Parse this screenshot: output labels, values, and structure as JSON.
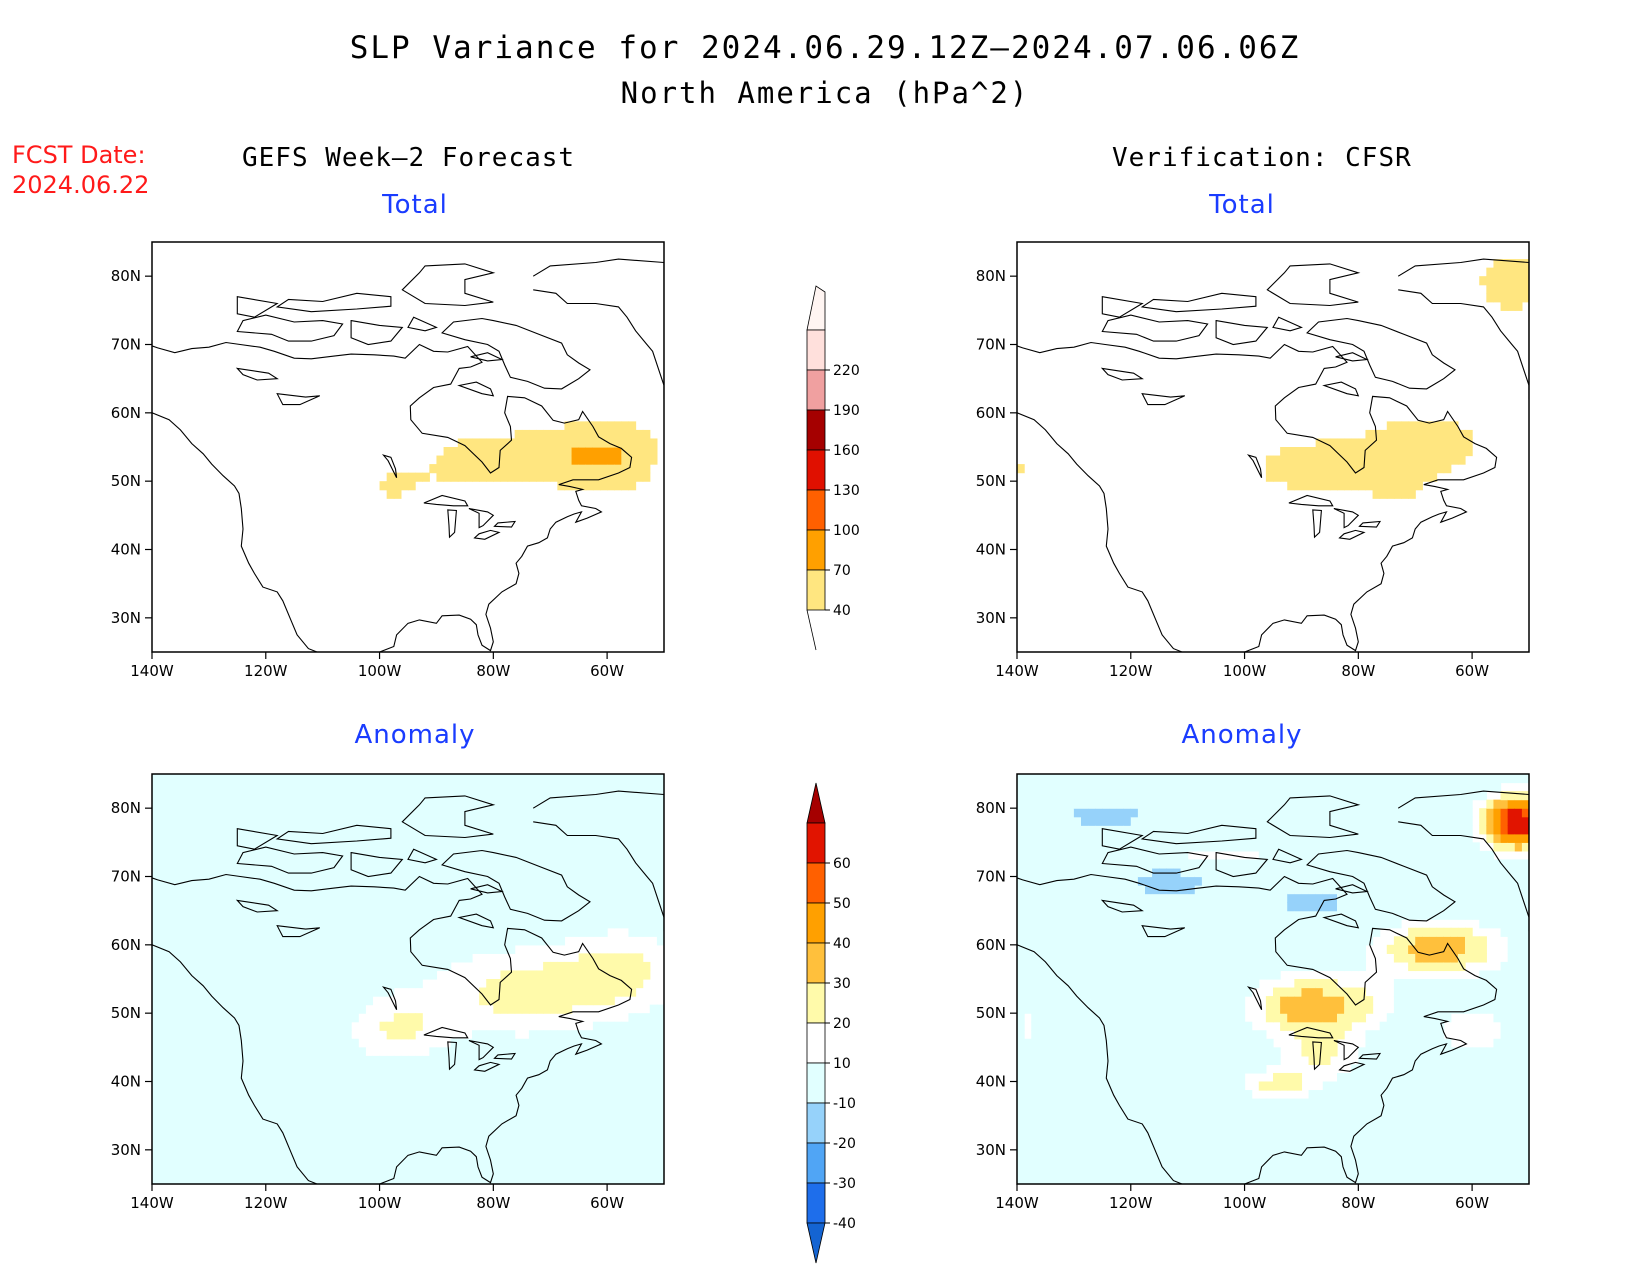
{
  "title": "SLP Variance for 2024.06.29.12Z–2024.07.06.06Z",
  "subtitle": "North America (hPa^2)",
  "fcst_date": {
    "label": "FCST Date:",
    "value": "2024.06.22"
  },
  "columns": {
    "left": "GEFS Week–2 Forecast",
    "right": "Verification: CFSR"
  },
  "axes": {
    "lon_ticks": [
      "140W",
      "120W",
      "100W",
      "80W",
      "60W"
    ],
    "lat_ticks": [
      "80N",
      "70N",
      "60N",
      "50N",
      "40N",
      "30N"
    ],
    "lon_range": [
      -140,
      -50
    ],
    "lat_range": [
      25,
      85
    ]
  },
  "panels": [
    {
      "id": "gefs-total",
      "label": "Total"
    },
    {
      "id": "cfsr-total",
      "label": "Total"
    },
    {
      "id": "gefs-anomaly",
      "label": "Anomaly"
    },
    {
      "id": "cfsr-anomaly",
      "label": "Anomaly"
    }
  ],
  "colorbars": {
    "total": {
      "labels": [
        "40",
        "70",
        "100",
        "130",
        "160",
        "190",
        "220"
      ],
      "colors": [
        "#ffe680",
        "#ffa000",
        "#ff6000",
        "#e01000",
        "#a50000",
        "#f0a0a0",
        "#ffe0dc"
      ]
    },
    "anomaly": {
      "labels": [
        "-40",
        "-30",
        "-20",
        "-10",
        "10",
        "20",
        "30",
        "40",
        "50",
        "60"
      ],
      "colors": [
        "#1464d2",
        "#1e6eeb",
        "#50a5f5",
        "#96d2fa",
        "#e1ffff",
        "#ffffff",
        "#fffaaa",
        "#ffc03c",
        "#ffa000",
        "#ff6000",
        "#e11400",
        "#a50000"
      ]
    }
  },
  "colors": {
    "title": "#000000",
    "fcst": "#ff1a1a",
    "panel_label": "#1a3cff"
  }
}
